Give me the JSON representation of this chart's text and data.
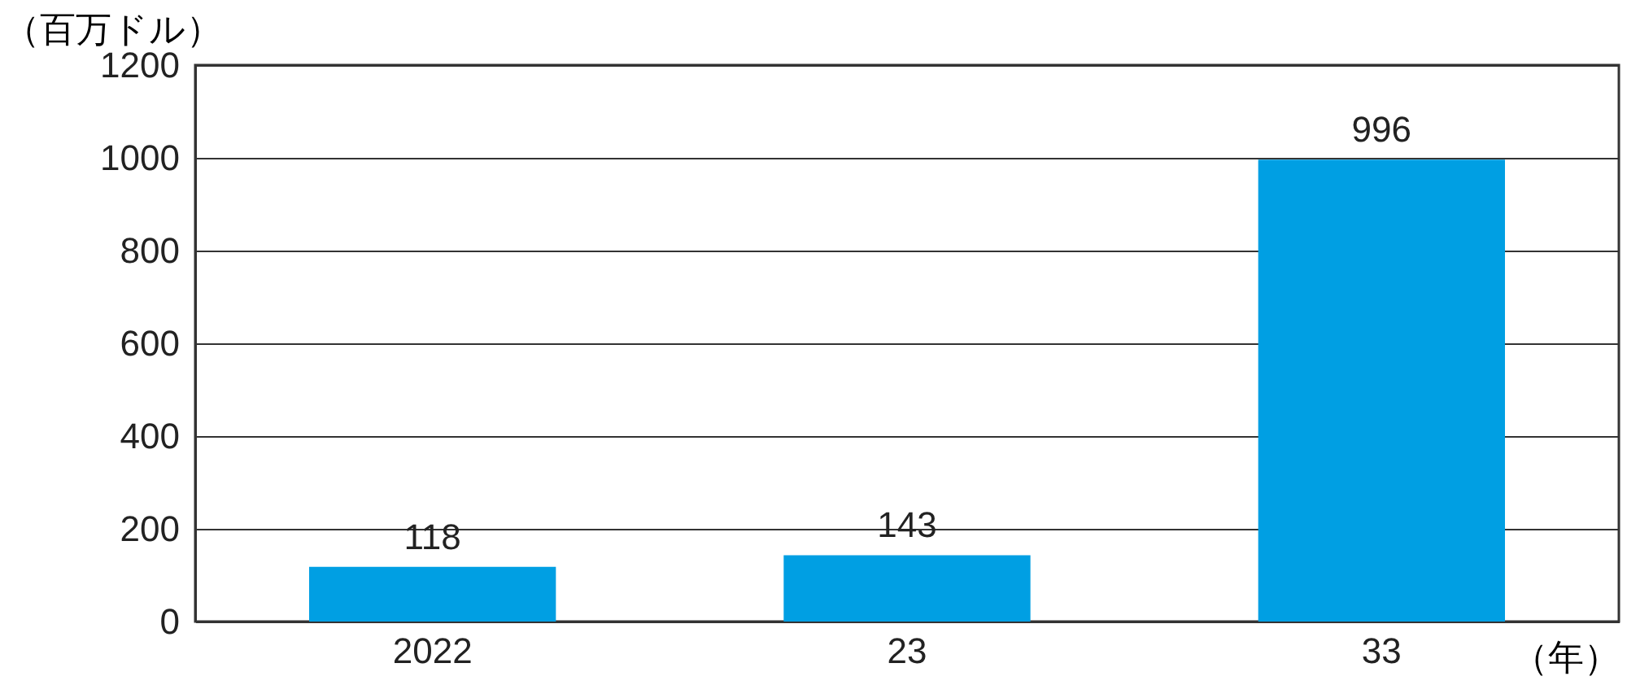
{
  "chart_data": {
    "type": "bar",
    "ylabel": "（百万ドル）",
    "xlabel": "（年）",
    "categories": [
      "2022",
      "23",
      "33"
    ],
    "values": [
      118,
      143,
      996
    ],
    "color": "#009fe3",
    "ylim": [
      0,
      1200
    ],
    "yticks": [
      0,
      200,
      400,
      600,
      800,
      1000,
      1200
    ],
    "grid": "y",
    "data_labels": true
  }
}
